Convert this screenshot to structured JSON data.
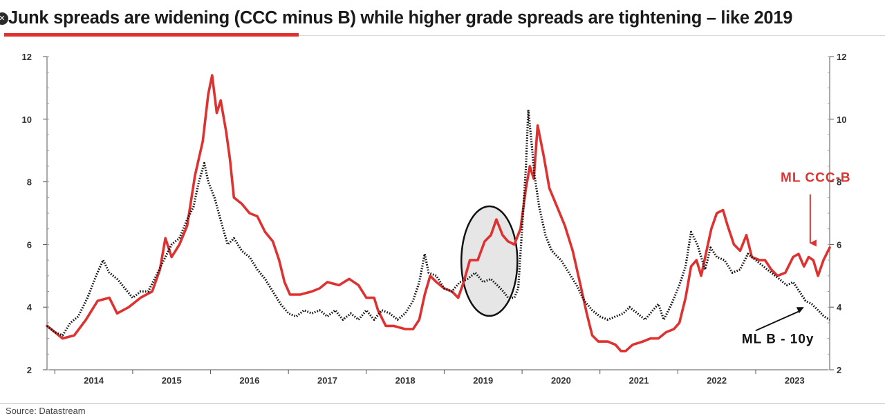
{
  "title": "Junk spreads are widening (CCC minus B) while higher grade spreads are tightening – like 2019",
  "source": "Source: Datastream",
  "colors": {
    "red_series": "#e03131",
    "black_series": "#111111",
    "highlight_fill": "#e6e6e6",
    "axis": "#555555",
    "title_rule": "#e03131"
  },
  "chart_data": {
    "type": "line",
    "title": "Junk spreads are widening (CCC minus B) while higher grade spreads are tightening – like 2019",
    "xlabel": "",
    "ylabel": "",
    "xlim": [
      2013.9,
      2023.95
    ],
    "ylim": [
      2,
      12
    ],
    "y_ticks": [
      2,
      4,
      6,
      8,
      10,
      12
    ],
    "x_ticks": [
      "2014",
      "2015",
      "2016",
      "2017",
      "2018",
      "2019",
      "2020",
      "2021",
      "2022",
      "2023"
    ],
    "grid": false,
    "dual_axis": true,
    "series": [
      {
        "name": "ML CCC-B",
        "style": "solid",
        "color": "#e03131",
        "points": [
          [
            2013.9,
            3.4
          ],
          [
            2014.0,
            3.2
          ],
          [
            2014.1,
            3.0
          ],
          [
            2014.25,
            3.1
          ],
          [
            2014.4,
            3.6
          ],
          [
            2014.55,
            4.2
          ],
          [
            2014.7,
            4.3
          ],
          [
            2014.8,
            3.8
          ],
          [
            2014.95,
            4.0
          ],
          [
            2015.1,
            4.3
          ],
          [
            2015.25,
            4.5
          ],
          [
            2015.35,
            5.2
          ],
          [
            2015.42,
            6.2
          ],
          [
            2015.5,
            5.6
          ],
          [
            2015.6,
            6.0
          ],
          [
            2015.7,
            6.6
          ],
          [
            2015.8,
            8.2
          ],
          [
            2015.9,
            9.3
          ],
          [
            2015.97,
            10.8
          ],
          [
            2016.02,
            11.4
          ],
          [
            2016.08,
            10.2
          ],
          [
            2016.13,
            10.6
          ],
          [
            2016.2,
            9.6
          ],
          [
            2016.25,
            8.7
          ],
          [
            2016.3,
            7.5
          ],
          [
            2016.4,
            7.3
          ],
          [
            2016.5,
            7.0
          ],
          [
            2016.6,
            6.9
          ],
          [
            2016.7,
            6.4
          ],
          [
            2016.8,
            6.1
          ],
          [
            2016.88,
            5.5
          ],
          [
            2016.95,
            4.8
          ],
          [
            2017.02,
            4.4
          ],
          [
            2017.15,
            4.4
          ],
          [
            2017.3,
            4.5
          ],
          [
            2017.4,
            4.6
          ],
          [
            2017.5,
            4.8
          ],
          [
            2017.65,
            4.7
          ],
          [
            2017.78,
            4.9
          ],
          [
            2017.9,
            4.7
          ],
          [
            2018.0,
            4.3
          ],
          [
            2018.1,
            4.3
          ],
          [
            2018.15,
            3.9
          ],
          [
            2018.25,
            3.4
          ],
          [
            2018.35,
            3.4
          ],
          [
            2018.5,
            3.3
          ],
          [
            2018.6,
            3.3
          ],
          [
            2018.68,
            3.6
          ],
          [
            2018.75,
            4.4
          ],
          [
            2018.82,
            5.0
          ],
          [
            2018.9,
            4.8
          ],
          [
            2019.0,
            4.6
          ],
          [
            2019.1,
            4.5
          ],
          [
            2019.18,
            4.3
          ],
          [
            2019.25,
            4.8
          ],
          [
            2019.33,
            5.5
          ],
          [
            2019.43,
            5.5
          ],
          [
            2019.52,
            6.1
          ],
          [
            2019.6,
            6.3
          ],
          [
            2019.67,
            6.8
          ],
          [
            2019.75,
            6.3
          ],
          [
            2019.82,
            6.1
          ],
          [
            2019.9,
            6.0
          ],
          [
            2019.98,
            6.5
          ],
          [
            2020.05,
            7.8
          ],
          [
            2020.1,
            8.5
          ],
          [
            2020.15,
            8.1
          ],
          [
            2020.2,
            9.8
          ],
          [
            2020.28,
            8.8
          ],
          [
            2020.35,
            7.8
          ],
          [
            2020.45,
            7.2
          ],
          [
            2020.55,
            6.6
          ],
          [
            2020.65,
            5.8
          ],
          [
            2020.75,
            4.7
          ],
          [
            2020.83,
            3.8
          ],
          [
            2020.9,
            3.1
          ],
          [
            2020.98,
            2.9
          ],
          [
            2021.1,
            2.9
          ],
          [
            2021.2,
            2.8
          ],
          [
            2021.27,
            2.6
          ],
          [
            2021.33,
            2.6
          ],
          [
            2021.42,
            2.8
          ],
          [
            2021.55,
            2.9
          ],
          [
            2021.65,
            3.0
          ],
          [
            2021.75,
            3.0
          ],
          [
            2021.85,
            3.2
          ],
          [
            2021.95,
            3.3
          ],
          [
            2022.02,
            3.5
          ],
          [
            2022.1,
            4.3
          ],
          [
            2022.17,
            5.3
          ],
          [
            2022.24,
            5.5
          ],
          [
            2022.3,
            5.0
          ],
          [
            2022.36,
            5.7
          ],
          [
            2022.43,
            6.5
          ],
          [
            2022.5,
            7.0
          ],
          [
            2022.58,
            7.1
          ],
          [
            2022.64,
            6.6
          ],
          [
            2022.72,
            6.0
          ],
          [
            2022.8,
            5.8
          ],
          [
            2022.88,
            6.3
          ],
          [
            2022.95,
            5.6
          ],
          [
            2023.05,
            5.5
          ],
          [
            2023.12,
            5.5
          ],
          [
            2023.2,
            5.2
          ],
          [
            2023.28,
            5.0
          ],
          [
            2023.38,
            5.1
          ],
          [
            2023.48,
            5.6
          ],
          [
            2023.55,
            5.7
          ],
          [
            2023.62,
            5.3
          ],
          [
            2023.68,
            5.6
          ],
          [
            2023.74,
            5.5
          ],
          [
            2023.8,
            5.0
          ],
          [
            2023.87,
            5.5
          ],
          [
            2023.95,
            5.9
          ]
        ]
      },
      {
        "name": "ML B - 10y",
        "style": "dotted",
        "color": "#111111",
        "points": [
          [
            2013.9,
            3.4
          ],
          [
            2014.0,
            3.2
          ],
          [
            2014.1,
            3.1
          ],
          [
            2014.2,
            3.5
          ],
          [
            2014.3,
            3.7
          ],
          [
            2014.42,
            4.3
          ],
          [
            2014.53,
            5.0
          ],
          [
            2014.62,
            5.5
          ],
          [
            2014.7,
            5.1
          ],
          [
            2014.8,
            4.9
          ],
          [
            2014.9,
            4.6
          ],
          [
            2015.0,
            4.3
          ],
          [
            2015.1,
            4.5
          ],
          [
            2015.2,
            4.5
          ],
          [
            2015.3,
            5.0
          ],
          [
            2015.4,
            5.5
          ],
          [
            2015.5,
            6.0
          ],
          [
            2015.6,
            6.2
          ],
          [
            2015.7,
            6.8
          ],
          [
            2015.78,
            7.2
          ],
          [
            2015.85,
            8.0
          ],
          [
            2015.92,
            8.6
          ],
          [
            2015.97,
            8.0
          ],
          [
            2016.05,
            7.5
          ],
          [
            2016.15,
            6.6
          ],
          [
            2016.22,
            6.0
          ],
          [
            2016.3,
            6.2
          ],
          [
            2016.4,
            5.8
          ],
          [
            2016.5,
            5.6
          ],
          [
            2016.6,
            5.2
          ],
          [
            2016.7,
            4.9
          ],
          [
            2016.8,
            4.5
          ],
          [
            2016.9,
            4.1
          ],
          [
            2017.0,
            3.8
          ],
          [
            2017.1,
            3.7
          ],
          [
            2017.2,
            3.9
          ],
          [
            2017.3,
            3.8
          ],
          [
            2017.4,
            3.9
          ],
          [
            2017.5,
            3.7
          ],
          [
            2017.6,
            3.9
          ],
          [
            2017.7,
            3.6
          ],
          [
            2017.8,
            3.8
          ],
          [
            2017.9,
            3.6
          ],
          [
            2018.0,
            3.9
          ],
          [
            2018.1,
            3.6
          ],
          [
            2018.2,
            3.9
          ],
          [
            2018.3,
            3.8
          ],
          [
            2018.4,
            3.6
          ],
          [
            2018.5,
            3.8
          ],
          [
            2018.6,
            4.2
          ],
          [
            2018.68,
            4.8
          ],
          [
            2018.75,
            5.7
          ],
          [
            2018.8,
            5.1
          ],
          [
            2018.9,
            5.0
          ],
          [
            2019.0,
            4.6
          ],
          [
            2019.1,
            4.5
          ],
          [
            2019.2,
            4.8
          ],
          [
            2019.3,
            4.9
          ],
          [
            2019.4,
            5.1
          ],
          [
            2019.5,
            4.8
          ],
          [
            2019.6,
            4.9
          ],
          [
            2019.68,
            4.7
          ],
          [
            2019.76,
            4.5
          ],
          [
            2019.82,
            4.3
          ],
          [
            2019.9,
            4.3
          ],
          [
            2019.95,
            4.6
          ],
          [
            2020.0,
            6.5
          ],
          [
            2020.05,
            8.5
          ],
          [
            2020.08,
            10.3
          ],
          [
            2020.12,
            9.3
          ],
          [
            2020.16,
            8.2
          ],
          [
            2020.22,
            7.2
          ],
          [
            2020.3,
            6.3
          ],
          [
            2020.38,
            5.8
          ],
          [
            2020.5,
            5.5
          ],
          [
            2020.6,
            5.1
          ],
          [
            2020.7,
            4.7
          ],
          [
            2020.8,
            4.2
          ],
          [
            2020.9,
            3.9
          ],
          [
            2021.0,
            3.7
          ],
          [
            2021.1,
            3.6
          ],
          [
            2021.2,
            3.7
          ],
          [
            2021.3,
            3.8
          ],
          [
            2021.38,
            4.0
          ],
          [
            2021.48,
            3.8
          ],
          [
            2021.58,
            3.6
          ],
          [
            2021.68,
            3.9
          ],
          [
            2021.75,
            4.1
          ],
          [
            2021.82,
            3.6
          ],
          [
            2021.92,
            4.1
          ],
          [
            2022.02,
            4.7
          ],
          [
            2022.1,
            5.3
          ],
          [
            2022.17,
            6.4
          ],
          [
            2022.25,
            6.0
          ],
          [
            2022.35,
            5.2
          ],
          [
            2022.42,
            5.9
          ],
          [
            2022.5,
            5.6
          ],
          [
            2022.6,
            5.5
          ],
          [
            2022.7,
            5.1
          ],
          [
            2022.8,
            5.2
          ],
          [
            2022.9,
            5.7
          ],
          [
            2023.0,
            5.5
          ],
          [
            2023.1,
            5.3
          ],
          [
            2023.2,
            5.1
          ],
          [
            2023.3,
            4.9
          ],
          [
            2023.4,
            4.7
          ],
          [
            2023.48,
            4.8
          ],
          [
            2023.56,
            4.5
          ],
          [
            2023.64,
            4.2
          ],
          [
            2023.72,
            4.1
          ],
          [
            2023.8,
            3.9
          ],
          [
            2023.88,
            3.7
          ],
          [
            2023.95,
            3.6
          ]
        ]
      }
    ],
    "annotations": [
      {
        "text": "ML CCC-B",
        "color": "#e03131",
        "target_x": 2023.7,
        "target_y": 6.0,
        "kind": "label-arrow-down"
      },
      {
        "text": "ML B  -  10y",
        "color": "#111111",
        "target_x": 2023.62,
        "target_y": 4.0,
        "kind": "label-arrow-up"
      }
    ],
    "highlight": {
      "shape": "ellipse",
      "x_center": 2019.58,
      "y_center": 5.47,
      "x_radius": 0.36,
      "y_radius": 1.75
    }
  }
}
